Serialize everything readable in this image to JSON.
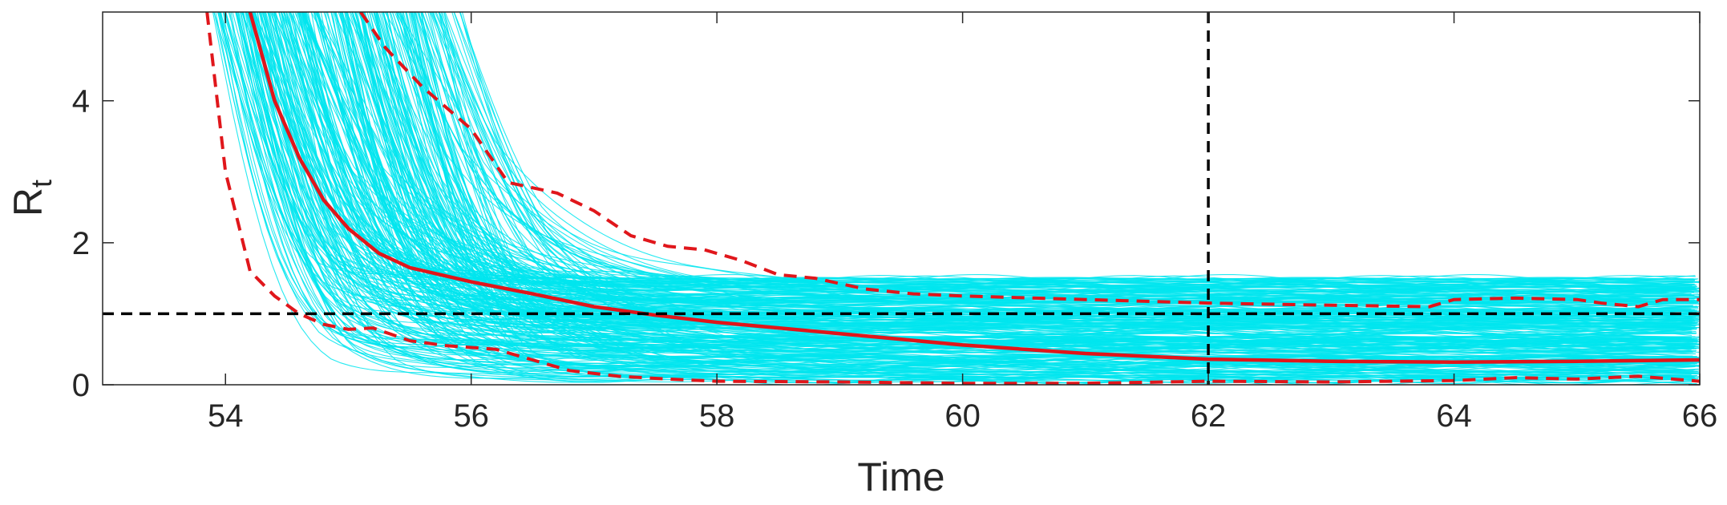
{
  "chart_data": {
    "type": "line",
    "title": "",
    "xlabel": "Time",
    "ylabel": {
      "main": "R",
      "subscript": "t"
    },
    "xlim": [
      53,
      66
    ],
    "ylim": [
      0,
      5.25
    ],
    "xticks": [
      54,
      56,
      58,
      60,
      62,
      64,
      66
    ],
    "yticks": [
      0,
      2,
      4
    ],
    "grid": false,
    "legend": "none",
    "colors": {
      "ensemble": "#00e5ee",
      "median": "#e0161b",
      "interval": "#e0161b",
      "reference": "#000000",
      "axes": "#262626"
    },
    "ensemble": {
      "description_free": true,
      "count": 320,
      "start_range": [
        53.75,
        55.5
      ],
      "final_range": [
        0.02,
        1.5
      ]
    },
    "series": [
      {
        "role": "median",
        "style": "solid",
        "x": [
          54.2,
          54.4,
          54.6,
          54.8,
          55.0,
          55.25,
          55.5,
          56.0,
          56.5,
          57.0,
          57.5,
          58.0,
          58.5,
          59.0,
          59.5,
          60.0,
          61.0,
          62.0,
          63.0,
          64.0,
          65.0,
          66.0
        ],
        "y": [
          5.25,
          4.0,
          3.2,
          2.6,
          2.2,
          1.85,
          1.65,
          1.45,
          1.28,
          1.1,
          0.98,
          0.88,
          0.8,
          0.72,
          0.64,
          0.56,
          0.44,
          0.36,
          0.33,
          0.32,
          0.33,
          0.35
        ]
      },
      {
        "role": "upper-bound",
        "style": "dashed",
        "x": [
          55.1,
          55.3,
          55.6,
          56.0,
          56.3,
          56.7,
          57.0,
          57.3,
          57.6,
          57.9,
          58.2,
          58.5,
          58.8,
          59.2,
          59.6,
          60.0,
          61.0,
          62.0,
          63.0,
          63.8,
          64.0,
          64.5,
          65.0,
          65.2,
          65.5,
          65.7,
          66.0
        ],
        "y": [
          5.25,
          4.75,
          4.2,
          3.6,
          2.85,
          2.7,
          2.45,
          2.1,
          1.95,
          1.9,
          1.75,
          1.55,
          1.5,
          1.35,
          1.28,
          1.25,
          1.2,
          1.15,
          1.12,
          1.1,
          1.2,
          1.22,
          1.2,
          1.15,
          1.1,
          1.2,
          1.2
        ]
      },
      {
        "role": "lower-bound",
        "style": "dashed",
        "x": [
          53.85,
          54.0,
          54.2,
          54.4,
          54.6,
          54.8,
          55.0,
          55.2,
          55.5,
          55.8,
          56.2,
          56.5,
          56.8,
          57.2,
          57.6,
          58.0,
          59.0,
          60.0,
          61.0,
          62.0,
          63.0,
          64.0,
          64.5,
          65.0,
          65.5,
          66.0
        ],
        "y": [
          5.25,
          3.0,
          1.6,
          1.25,
          1.0,
          0.85,
          0.78,
          0.8,
          0.62,
          0.55,
          0.5,
          0.35,
          0.2,
          0.12,
          0.08,
          0.05,
          0.04,
          0.02,
          0.02,
          0.05,
          0.04,
          0.06,
          0.1,
          0.08,
          0.12,
          0.05
        ]
      }
    ],
    "reference_lines": [
      {
        "orientation": "horizontal",
        "value": 1,
        "style": "dashed"
      },
      {
        "orientation": "vertical",
        "value": 62,
        "style": "dashed"
      }
    ]
  }
}
